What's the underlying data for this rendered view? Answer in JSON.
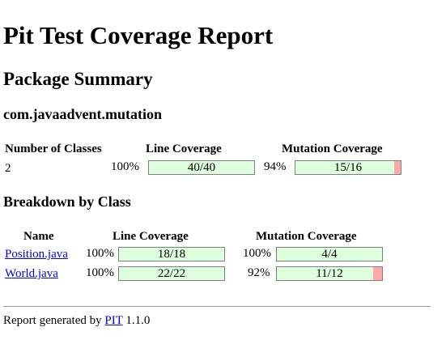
{
  "title": "Pit Test Coverage Report",
  "package_summary_heading": "Package Summary",
  "package_name": "com.javaadvent.mutation",
  "summary": {
    "headers": {
      "classes": "Number of Classes",
      "line": "Line Coverage",
      "mutation": "Mutation Coverage"
    },
    "classes": "2",
    "line_pct": "100%",
    "line_bar": "40/40",
    "line_fraction": 1.0,
    "mutation_pct": "94%",
    "mutation_bar": "15/16",
    "mutation_fraction": 0.9375
  },
  "breakdown_heading": "Breakdown by Class",
  "breakdown": {
    "headers": {
      "name": "Name",
      "line": "Line Coverage",
      "mutation": "Mutation Coverage"
    },
    "rows": [
      {
        "name": "Position.java",
        "line_pct": "100%",
        "line_bar": "18/18",
        "line_fraction": 1.0,
        "mutation_pct": "100%",
        "mutation_bar": "4/4",
        "mutation_fraction": 1.0
      },
      {
        "name": "World.java",
        "line_pct": "100%",
        "line_bar": "22/22",
        "line_fraction": 1.0,
        "mutation_pct": "92%",
        "mutation_bar": "11/12",
        "mutation_fraction": 0.9167
      }
    ]
  },
  "footer": {
    "prefix": "Report generated by ",
    "link": "PIT",
    "version": " 1.1.0"
  },
  "colors": {
    "covered": "#ddffdd",
    "uncovered": "#ffaaaa",
    "link": "#0000ee"
  }
}
